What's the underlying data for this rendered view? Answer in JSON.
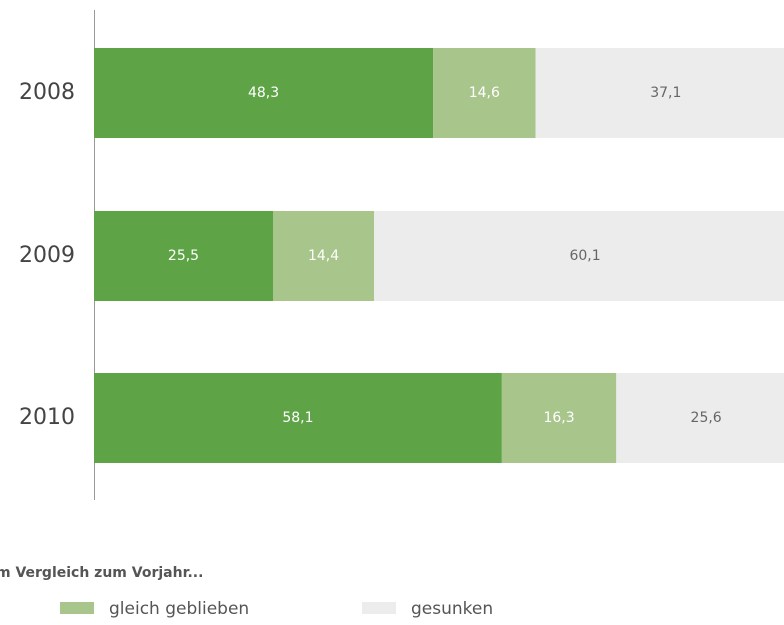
{
  "chart_data": {
    "type": "stacked-bar-horizontal",
    "categories": [
      "2008",
      "2009",
      "2010"
    ],
    "series": [
      {
        "color": "#5ea345",
        "label_color": "#ffffff",
        "values": [
          48.3,
          25.5,
          58.1
        ],
        "value_labels": [
          "48,3",
          "25,5",
          "58,1"
        ]
      },
      {
        "name": "gleich geblieben",
        "color": "#a8c58c",
        "label_color": "#ffffff",
        "values": [
          14.6,
          14.4,
          16.3
        ],
        "value_labels": [
          "14,6",
          "14,4",
          "16,3"
        ]
      },
      {
        "name": "gesunken",
        "color": "#ececec",
        "label_color": "#666666",
        "values": [
          37.1,
          60.1,
          25.6
        ],
        "value_labels": [
          "37,1",
          "60,1",
          "25,6"
        ]
      }
    ],
    "xlim": [
      0,
      100
    ],
    "legend_title": "m Vergleich zum Vorjahr..."
  }
}
